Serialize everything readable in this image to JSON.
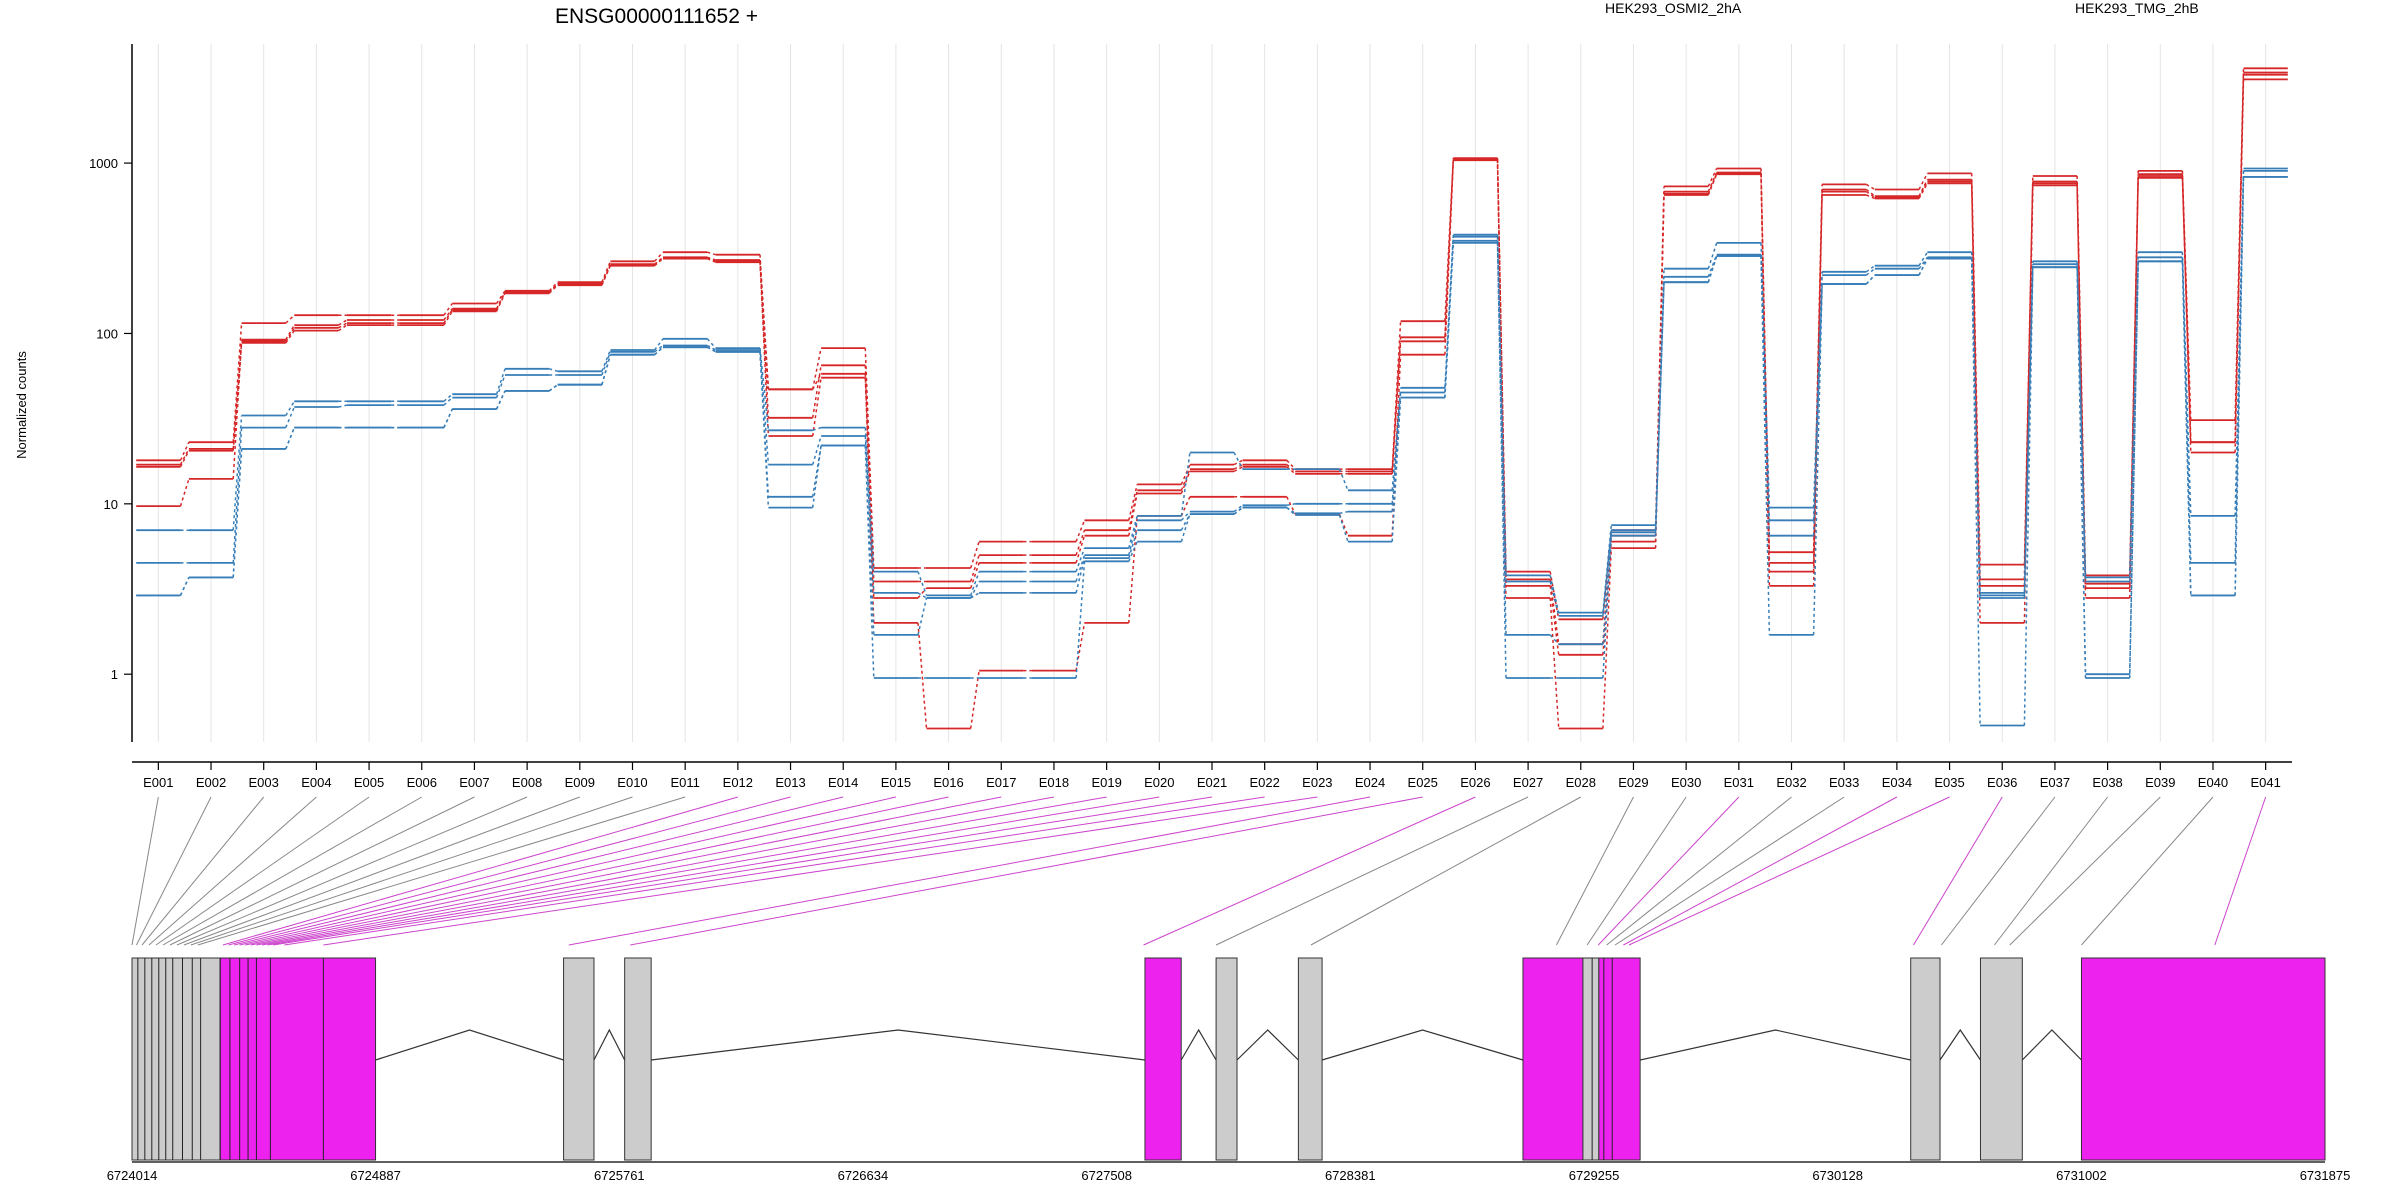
{
  "chart_data": {
    "type": "line",
    "title": "ENSG00000111652 +",
    "ylabel": "Normalized counts",
    "yscale": "log",
    "ylim": [
      0.4,
      5000
    ],
    "yticks": [
      {
        "value": 1,
        "label": "1"
      },
      {
        "value": 10,
        "label": "10"
      },
      {
        "value": 100,
        "label": "100"
      },
      {
        "value": 1000,
        "label": "1000"
      }
    ],
    "exons": [
      "E001",
      "E002",
      "E003",
      "E004",
      "E005",
      "E006",
      "E007",
      "E008",
      "E009",
      "E010",
      "E011",
      "E012",
      "E013",
      "E014",
      "E015",
      "E016",
      "E017",
      "E018",
      "E019",
      "E020",
      "E021",
      "E022",
      "E023",
      "E024",
      "E025",
      "E026",
      "E027",
      "E028",
      "E029",
      "E030",
      "E031",
      "E032",
      "E033",
      "E034",
      "E035",
      "E036",
      "E037",
      "E038",
      "E039",
      "E040",
      "E041"
    ],
    "colors": {
      "HEK293_OSMI2_2hA": "#d62728",
      "HEK293_TMG_2hB": "#377eb8",
      "highlight": "#ee22ee",
      "exon_box": "#cccccc"
    },
    "legend": [
      {
        "name": "HEK293_OSMI2_2hA",
        "color": "#d62728"
      },
      {
        "name": "HEK293_TMG_2hB",
        "color": "#377eb8"
      }
    ],
    "series": [
      {
        "group": "HEK293_OSMI2_2hA",
        "values": [
          18,
          23,
          115,
          128,
          128,
          128,
          150,
          178,
          200,
          265,
          300,
          290,
          47,
          82,
          4.2,
          4.2,
          6,
          6,
          8,
          13,
          17,
          18,
          16,
          16,
          118,
          1070,
          4,
          2.1,
          7,
          730,
          930,
          5.2,
          750,
          700,
          870,
          4.4,
          840,
          3.8,
          900,
          31,
          3600
        ]
      },
      {
        "group": "HEK293_OSMI2_2hA",
        "values": [
          17,
          21,
          92,
          112,
          120,
          120,
          140,
          175,
          195,
          255,
          280,
          270,
          32,
          65,
          3.5,
          3.5,
          5,
          5,
          7,
          12,
          16,
          17,
          15.5,
          15.5,
          95,
          1050,
          3.6,
          1.5,
          6.5,
          680,
          880,
          4.5,
          700,
          640,
          800,
          3.6,
          780,
          3.4,
          860,
          23,
          3400
        ]
      },
      {
        "group": "HEK293_OSMI2_2hA",
        "values": [
          16.5,
          20.5,
          88,
          104,
          112,
          112,
          135,
          172,
          192,
          250,
          275,
          262,
          25,
          55,
          2.8,
          3.2,
          4.5,
          4.5,
          6.5,
          11.5,
          15.5,
          16.5,
          15,
          15,
          90,
          1040,
          3.3,
          1.3,
          6,
          660,
          870,
          4,
          680,
          630,
          780,
          3.3,
          760,
          3.2,
          840,
          23,
          3100
        ]
      },
      {
        "group": "HEK293_OSMI2_2hA",
        "values": [
          9.7,
          14,
          90,
          108,
          115,
          115,
          138,
          174,
          196,
          252,
          278,
          265,
          47,
          58,
          2,
          0.48,
          1.05,
          1.05,
          2,
          8.5,
          11,
          11,
          8.7,
          6.5,
          75,
          1060,
          2.8,
          0.48,
          5.5,
          650,
          860,
          3.3,
          650,
          620,
          760,
          2,
          740,
          2.8,
          820,
          20,
          3300
        ]
      },
      {
        "group": "HEK293_TMG_2hB",
        "values": [
          7,
          7,
          33,
          40,
          40,
          40,
          44,
          62,
          60,
          80,
          93,
          82,
          27,
          28,
          4,
          2.9,
          4,
          4,
          5.5,
          8.5,
          20,
          16,
          16,
          12,
          48,
          380,
          3.8,
          2.3,
          7.5,
          240,
          340,
          9.5,
          230,
          250,
          300,
          3,
          265,
          3.7,
          300,
          8.5,
          930
        ]
      },
      {
        "group": "HEK293_TMG_2hB",
        "values": [
          4.5,
          4.5,
          28,
          37,
          38,
          38,
          42,
          57,
          57,
          78,
          85,
          80,
          17,
          25,
          3,
          2.8,
          3.5,
          3.5,
          5,
          8,
          9,
          9.8,
          10,
          10,
          45,
          370,
          3.5,
          2.2,
          7,
          215,
          290,
          8,
          220,
          240,
          280,
          2.9,
          255,
          3.5,
          280,
          4.5,
          900
        ]
      },
      {
        "group": "HEK293_TMG_2hB",
        "values": [
          2.9,
          3.7,
          21,
          28,
          28,
          28,
          36,
          46,
          50,
          75,
          83,
          78,
          11,
          22,
          1.7,
          2.8,
          3,
          3,
          4.8,
          7,
          8.7,
          9.5,
          8.8,
          9,
          42,
          350,
          1.7,
          1.5,
          6.8,
          200,
          285,
          6.5,
          195,
          220,
          275,
          2.8,
          245,
          1,
          265,
          2.9,
          830
        ]
      },
      {
        "group": "HEK293_TMG_2hB",
        "values": [
          2.9,
          3.7,
          21,
          28,
          28,
          28,
          36,
          46,
          50,
          75,
          83,
          78,
          9.5,
          22,
          0.95,
          0.95,
          0.95,
          0.95,
          4.6,
          6,
          8.7,
          9.5,
          8.6,
          6,
          42,
          340,
          0.95,
          0.95,
          6.5,
          200,
          285,
          1.7,
          195,
          220,
          275,
          0.5,
          245,
          0.95,
          265,
          2.9,
          830
        ]
      }
    ],
    "gene_model": {
      "coord_ticks": [
        "6724014",
        "6724887",
        "6725761",
        "6726634",
        "6727508",
        "6728381",
        "6729255",
        "6730128",
        "6731002",
        "6731875"
      ],
      "coord_start": 6724014,
      "coord_end": 6731875,
      "exon_highlighted": [
        false,
        false,
        false,
        false,
        false,
        false,
        false,
        false,
        false,
        false,
        false,
        true,
        true,
        true,
        true,
        true,
        true,
        true,
        true,
        true,
        true,
        true,
        true,
        true,
        true,
        true,
        false,
        false,
        false,
        false,
        true,
        false,
        false,
        true,
        true,
        true,
        false,
        false,
        false,
        false,
        true
      ]
    }
  }
}
